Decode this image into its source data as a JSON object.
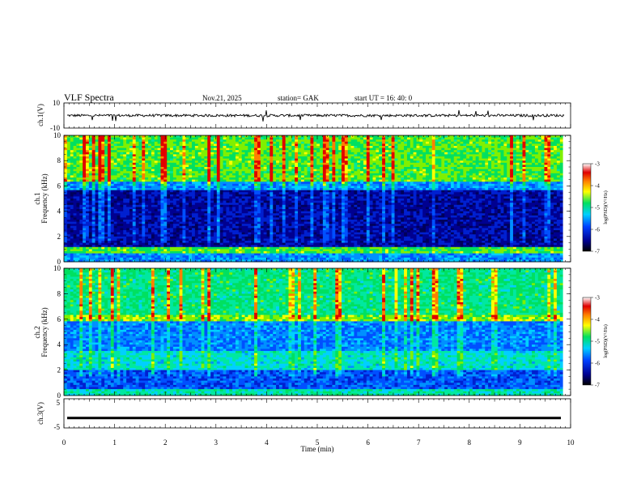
{
  "header": {
    "title": "VLF  Spectra",
    "date": "Nov.21, 2025",
    "station": "station= GAK",
    "start": "start  UT  =    16: 40: 0"
  },
  "chart_data": [
    {
      "type": "line",
      "name": "ch1-waveform",
      "ylabel": "ch.1(V)",
      "ylim": [
        -10,
        10
      ],
      "yticks": [
        "10",
        "-10"
      ],
      "xlim": [
        0,
        10
      ],
      "approx_level": 0,
      "approx_amplitude": 2
    },
    {
      "type": "heatmap",
      "name": "ch1-spectrogram",
      "ylabel": "ch.1\nFrequency  (kHz)",
      "ylim": [
        0,
        10
      ],
      "yticks": [
        "0",
        "2",
        "4",
        "6",
        "8",
        "10"
      ],
      "xlim": [
        0,
        9.85
      ],
      "colorbar": {
        "label": "log(PSD)(V²/Hz)",
        "range": [
          -7,
          -3
        ],
        "ticks": [
          "-3",
          "-4",
          "-5",
          "-6",
          "-7"
        ]
      }
    },
    {
      "type": "heatmap",
      "name": "ch2-spectrogram",
      "ylabel": "ch.2\nFrequency  (kHz)",
      "ylim": [
        0,
        10
      ],
      "yticks": [
        "0",
        "2",
        "4",
        "6",
        "8",
        "10"
      ],
      "xlim": [
        0,
        9.85
      ],
      "colorbar": {
        "label": "log(PSD)(V²/Hz)",
        "range": [
          -7,
          -3
        ],
        "ticks": [
          "-3",
          "-4",
          "-5",
          "-6",
          "-7"
        ]
      }
    },
    {
      "type": "line",
      "name": "ch3-waveform",
      "ylabel": "ch.3(V)",
      "ylim": [
        -5,
        5
      ],
      "yticks": [
        "5",
        "-5"
      ],
      "xlim": [
        0,
        10
      ],
      "approx_level": -1.6
    }
  ],
  "xaxis": {
    "label": "Time  (min)",
    "ticks": [
      "0",
      "1",
      "2",
      "3",
      "4",
      "5",
      "6",
      "7",
      "8",
      "9",
      "10"
    ]
  }
}
